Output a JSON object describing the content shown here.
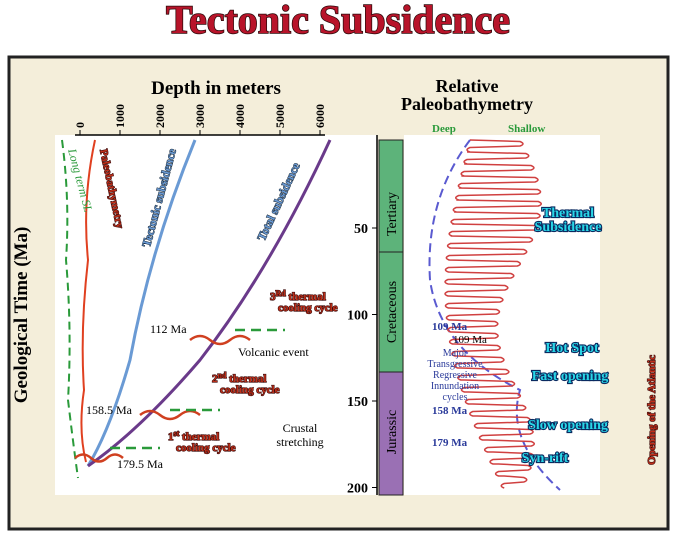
{
  "title": "Tectonic Subsidence",
  "depth_axis": {
    "label": "Depth in meters",
    "ticks": [
      "0",
      "1000",
      "2000",
      "3000",
      "4000",
      "5000",
      "6000"
    ]
  },
  "time_axis": {
    "label": "Geological Time (Ma)",
    "ticks": [
      "50",
      "100",
      "150",
      "200"
    ]
  },
  "curves": {
    "sea_level": "Long term SL",
    "paleo": "Paleobathymetry",
    "tectonic": "Tectonic subsidence",
    "total": "Total subsidence"
  },
  "events": {
    "e112": "112 Ma",
    "volcanic": "Volcanic event",
    "e158": "158.5 Ma",
    "e179": "179.5 Ma",
    "stretch1": "Crustal",
    "stretch2": "stretching"
  },
  "cycles": [
    {
      "n": "3",
      "sup": "Rd",
      "rest": " thermal",
      "line2": "cooling cycle"
    },
    {
      "n": "2",
      "sup": "nd",
      "rest": " thermal",
      "line2": "cooling cycle"
    },
    {
      "n": "1",
      "sup": "st",
      "rest": " thermal",
      "line2": "cooling cycle"
    }
  ],
  "periods": [
    "Tertiary",
    "Cretaceous",
    "Jurassic"
  ],
  "bathymetry": {
    "title1": "Relative",
    "title2": "Paleobathymetry",
    "deep": "Deep",
    "shallow": "Shallow",
    "thermal1": "Thermal",
    "thermal2": "Subsidence",
    "hotspot": "Hot Spot",
    "fast": "Fast opening",
    "slow": "Slow opening",
    "synrift": "Syn-rift",
    "d109a": "109 Ma",
    "d109b": "109 Ma",
    "d158": "158 Ma",
    "d179": "179 Ma",
    "cycles": [
      "Major",
      "Transgressive",
      "Regressive",
      "Innundation",
      "cycles"
    ],
    "atlantic": "Opening of the Atlantic"
  }
}
